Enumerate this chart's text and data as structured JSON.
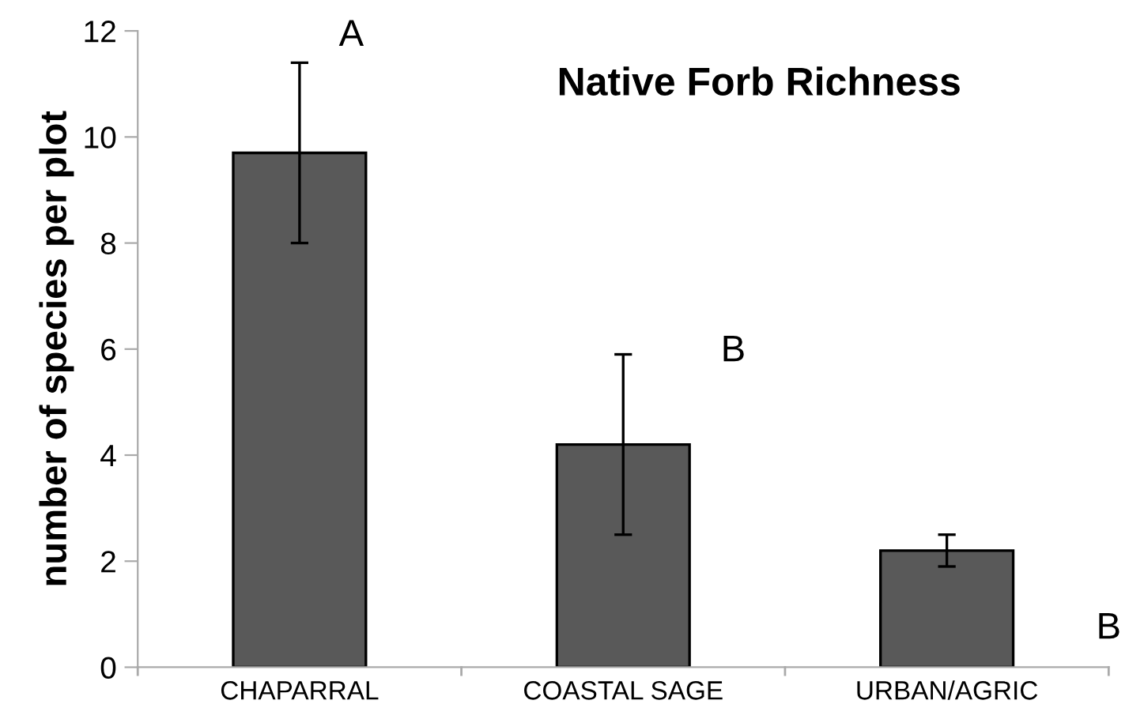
{
  "chart_data": {
    "type": "bar",
    "title": "Native Forb Richness",
    "ylabel": "number of species per plot",
    "categories": [
      "CHAPARRAL",
      "COASTAL SAGE",
      "URBAN/AGRIC"
    ],
    "values": [
      9.7,
      4.2,
      2.2
    ],
    "errors": [
      1.7,
      1.7,
      0.3
    ],
    "color": "#595959",
    "ylim": [
      0,
      12
    ],
    "yticks": [
      0,
      2,
      4,
      6,
      8,
      10,
      12
    ],
    "grid": false,
    "legend": false,
    "annotations": [
      "A",
      "B",
      "B"
    ]
  }
}
